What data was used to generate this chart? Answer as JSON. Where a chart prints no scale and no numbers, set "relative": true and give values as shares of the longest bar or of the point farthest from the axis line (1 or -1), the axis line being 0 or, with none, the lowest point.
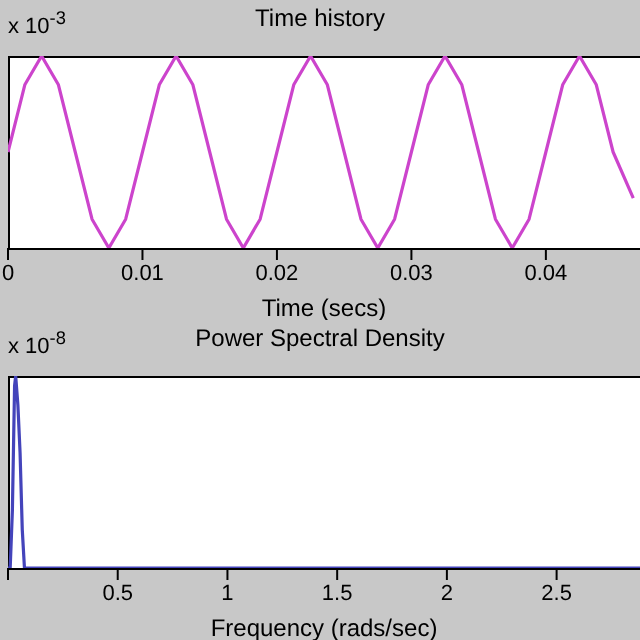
{
  "chart_data": [
    {
      "type": "line",
      "title": "Time history",
      "xlabel": "Time (secs)",
      "annotations": [
        "x 10$^{-3}$"
      ],
      "relative": true,
      "x": [
        0,
        0.00125,
        0.0025,
        0.00375,
        0.005,
        0.00625,
        0.0075,
        0.00875,
        0.01,
        0.01125,
        0.0125,
        0.01375,
        0.015,
        0.01625,
        0.0175,
        0.01875,
        0.02,
        0.02125,
        0.0225,
        0.02375,
        0.025,
        0.02625,
        0.0275,
        0.02875,
        0.03,
        0.03125,
        0.0325,
        0.03375,
        0.035,
        0.03625,
        0.0375,
        0.03875,
        0.04,
        0.04125,
        0.0425,
        0.04375,
        0.045,
        0.0465
      ],
      "series": [
        {
          "color": "#cc44cc",
          "values": [
            0.5,
            0.85,
            1,
            0.85,
            0.5,
            0.15,
            0,
            0.15,
            0.5,
            0.85,
            1,
            0.85,
            0.5,
            0.15,
            0,
            0.15,
            0.5,
            0.85,
            1,
            0.85,
            0.5,
            0.15,
            0,
            0.15,
            0.5,
            0.85,
            1,
            0.85,
            0.5,
            0.15,
            0,
            0.15,
            0.5,
            0.85,
            1,
            0.85,
            0.5,
            0.26
          ]
        }
      ],
      "xlim": [
        0,
        0.047
      ],
      "xticks": [
        0,
        0.01,
        0.02,
        0.03,
        0.04
      ],
      "grid": false,
      "legend": false,
      "marker": "none",
      "line_style": "solid"
    },
    {
      "type": "line",
      "title": "Power Spectral Density",
      "xlabel": "Frequency (rads/sec)",
      "annotations": [
        "x 10$^{-8}$"
      ],
      "relative": true,
      "x": [
        0,
        0.01,
        0.02,
        0.03,
        0.035,
        0.045,
        0.055,
        0.065,
        0.075,
        0.1,
        1,
        2,
        2.88
      ],
      "series": [
        {
          "color": "#4444bb",
          "values": [
            0,
            0,
            0.3,
            0.95,
            1,
            0.85,
            0.6,
            0.2,
            0,
            0,
            0,
            0,
            0
          ]
        }
      ],
      "xlim": [
        0,
        2.88
      ],
      "xticks": [
        {
          "value": 0,
          "label": null
        },
        0.5,
        1,
        1.5,
        2,
        2.5
      ],
      "grid": false,
      "legend": false,
      "marker": "none",
      "line_style": "solid"
    }
  ]
}
